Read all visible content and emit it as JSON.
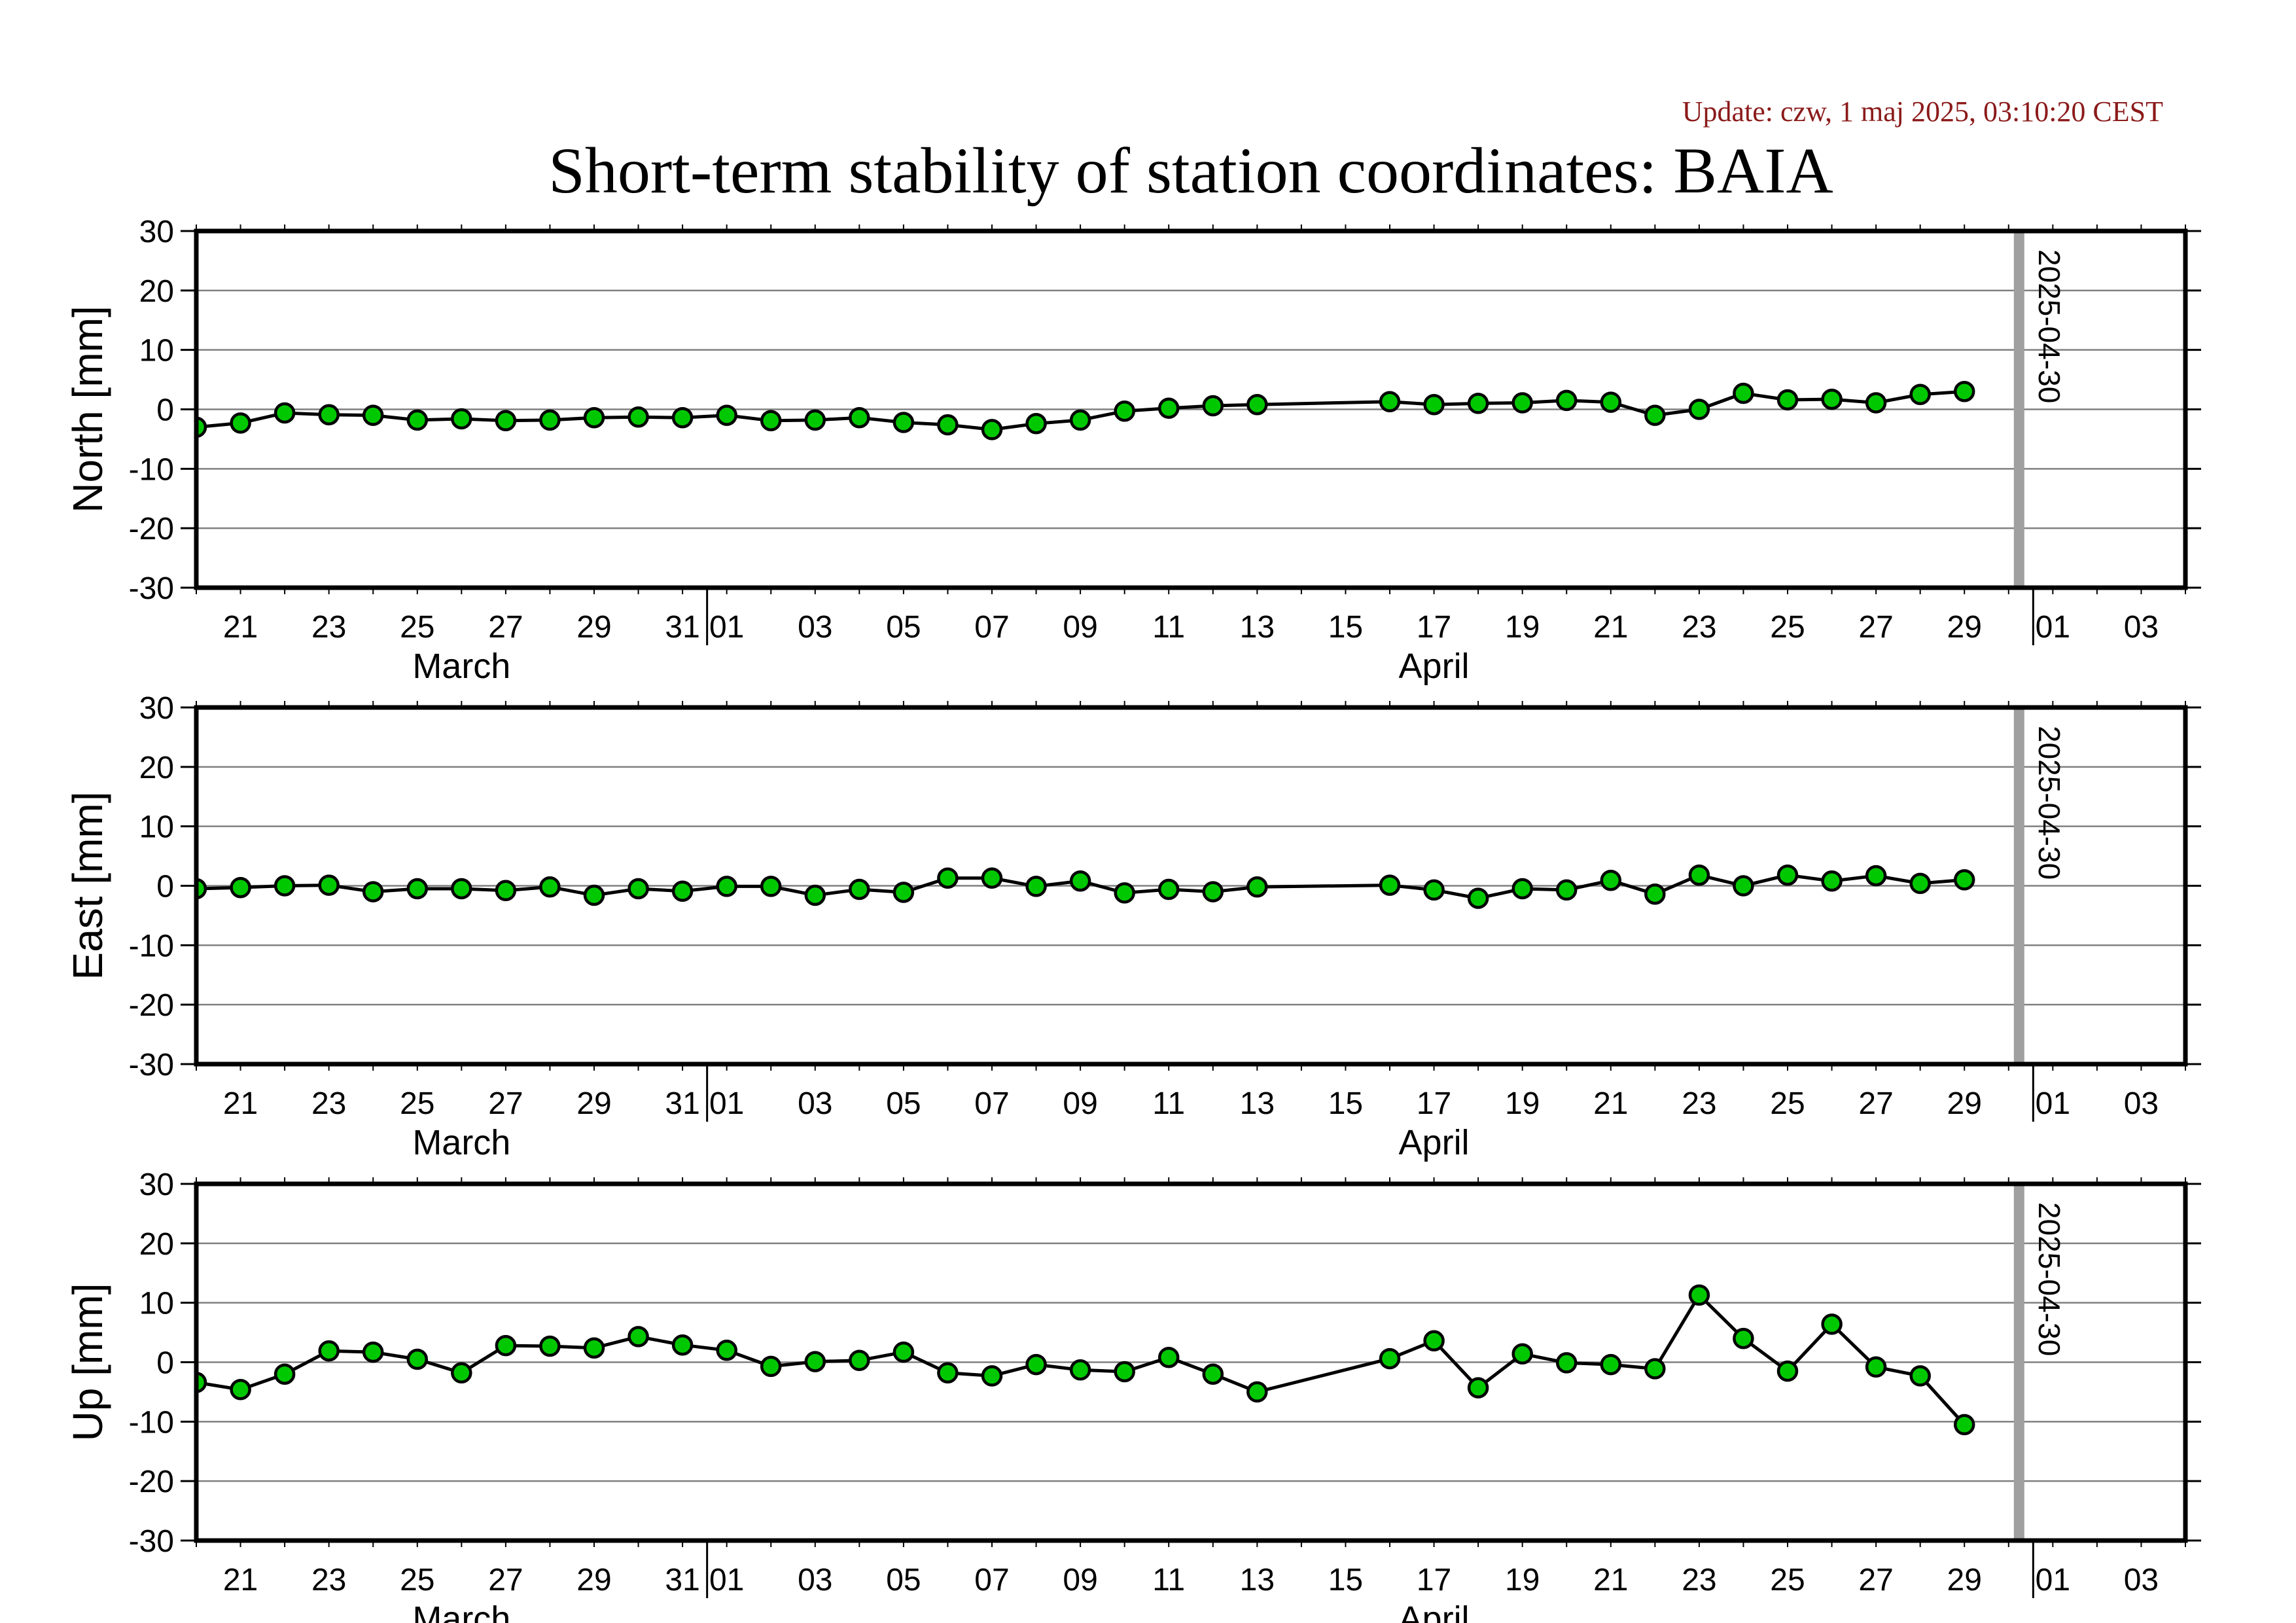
{
  "header": {
    "update": "Update: czw, 1 maj 2025, 03:10:20 CEST",
    "title": "Short-term stability of station coordinates: BAIA"
  },
  "chart_data": {
    "type": "line",
    "x_unit": "day",
    "x_range": [
      "2025-03-20",
      "2025-05-04"
    ],
    "ylim": [
      -30,
      30
    ],
    "y_ticks": [
      30,
      20,
      10,
      0,
      -10,
      -20,
      -30
    ],
    "x_tick_labels": [
      {
        "date": "2025-03-21",
        "label": "21"
      },
      {
        "date": "2025-03-23",
        "label": "23"
      },
      {
        "date": "2025-03-25",
        "label": "25"
      },
      {
        "date": "2025-03-27",
        "label": "27"
      },
      {
        "date": "2025-03-29",
        "label": "29"
      },
      {
        "date": "2025-03-31",
        "label": "31"
      },
      {
        "date": "2025-04-01",
        "label": "01"
      },
      {
        "date": "2025-04-03",
        "label": "03"
      },
      {
        "date": "2025-04-05",
        "label": "05"
      },
      {
        "date": "2025-04-07",
        "label": "07"
      },
      {
        "date": "2025-04-09",
        "label": "09"
      },
      {
        "date": "2025-04-11",
        "label": "11"
      },
      {
        "date": "2025-04-13",
        "label": "13"
      },
      {
        "date": "2025-04-15",
        "label": "15"
      },
      {
        "date": "2025-04-17",
        "label": "17"
      },
      {
        "date": "2025-04-19",
        "label": "19"
      },
      {
        "date": "2025-04-21",
        "label": "21"
      },
      {
        "date": "2025-04-23",
        "label": "23"
      },
      {
        "date": "2025-04-25",
        "label": "25"
      },
      {
        "date": "2025-04-27",
        "label": "27"
      },
      {
        "date": "2025-04-29",
        "label": "29"
      },
      {
        "date": "2025-05-01",
        "label": "01"
      },
      {
        "date": "2025-05-03",
        "label": "03"
      }
    ],
    "month_labels": [
      {
        "date": "2025-03-26",
        "label": "March"
      },
      {
        "date": "2025-04-17",
        "label": "April"
      }
    ],
    "month_boundaries": [
      "2025-04-01",
      "2025-05-01"
    ],
    "marker": {
      "date": "2025-04-30",
      "label": "2025-04-30",
      "color": "#a0a0a0"
    },
    "point_color": "#00c800",
    "line_color": "#000000",
    "grid": true,
    "x": [
      "2025-03-20",
      "2025-03-21",
      "2025-03-22",
      "2025-03-23",
      "2025-03-24",
      "2025-03-25",
      "2025-03-26",
      "2025-03-27",
      "2025-03-28",
      "2025-03-29",
      "2025-03-30",
      "2025-03-31",
      "2025-04-01",
      "2025-04-02",
      "2025-04-03",
      "2025-04-04",
      "2025-04-05",
      "2025-04-06",
      "2025-04-07",
      "2025-04-08",
      "2025-04-09",
      "2025-04-10",
      "2025-04-11",
      "2025-04-12",
      "2025-04-13",
      "2025-04-16",
      "2025-04-17",
      "2025-04-18",
      "2025-04-19",
      "2025-04-20",
      "2025-04-21",
      "2025-04-22",
      "2025-04-23",
      "2025-04-24",
      "2025-04-25",
      "2025-04-26",
      "2025-04-27",
      "2025-04-28",
      "2025-04-29"
    ],
    "panels": [
      {
        "ylabel": "North [mm]",
        "values": [
          -3,
          -2.3,
          -0.6,
          -0.9,
          -1,
          -1.8,
          -1.6,
          -1.9,
          -1.8,
          -1.4,
          -1.3,
          -1.4,
          -1,
          -1.9,
          -1.8,
          -1.4,
          -2.2,
          -2.6,
          -3.4,
          -2.4,
          -1.8,
          -0.3,
          0.2,
          0.6,
          0.8,
          1.3,
          0.8,
          1,
          1.1,
          1.5,
          1.2,
          -1,
          0,
          2.7,
          1.6,
          1.7,
          1.1,
          2.5,
          3
        ]
      },
      {
        "ylabel": "East [mm]",
        "values": [
          -0.5,
          -0.3,
          0,
          0.1,
          -1,
          -0.5,
          -0.5,
          -0.8,
          -0.2,
          -1.6,
          -0.5,
          -0.9,
          -0.1,
          -0.1,
          -1.6,
          -0.6,
          -1.1,
          1.3,
          1.3,
          -0.1,
          0.8,
          -1.2,
          -0.6,
          -1,
          -0.2,
          0.1,
          -0.7,
          -2.1,
          -0.5,
          -0.7,
          0.9,
          -1.4,
          1.8,
          0,
          1.8,
          0.8,
          1.7,
          0.4,
          1
        ]
      },
      {
        "ylabel": "Up [mm]",
        "values": [
          -3.4,
          -4.6,
          -2,
          1.9,
          1.7,
          0.5,
          -1.8,
          2.8,
          2.7,
          2.4,
          4.3,
          2.9,
          2,
          -0.7,
          0.1,
          0.3,
          1.7,
          -1.8,
          -2.3,
          -0.4,
          -1.3,
          -1.6,
          0.8,
          -2,
          -5,
          0.6,
          3.6,
          -4.3,
          1.4,
          -0.1,
          -0.4,
          -1.1,
          11.3,
          4,
          -1.5,
          6.4,
          -0.8,
          -2.3,
          -10.5
        ]
      }
    ]
  }
}
